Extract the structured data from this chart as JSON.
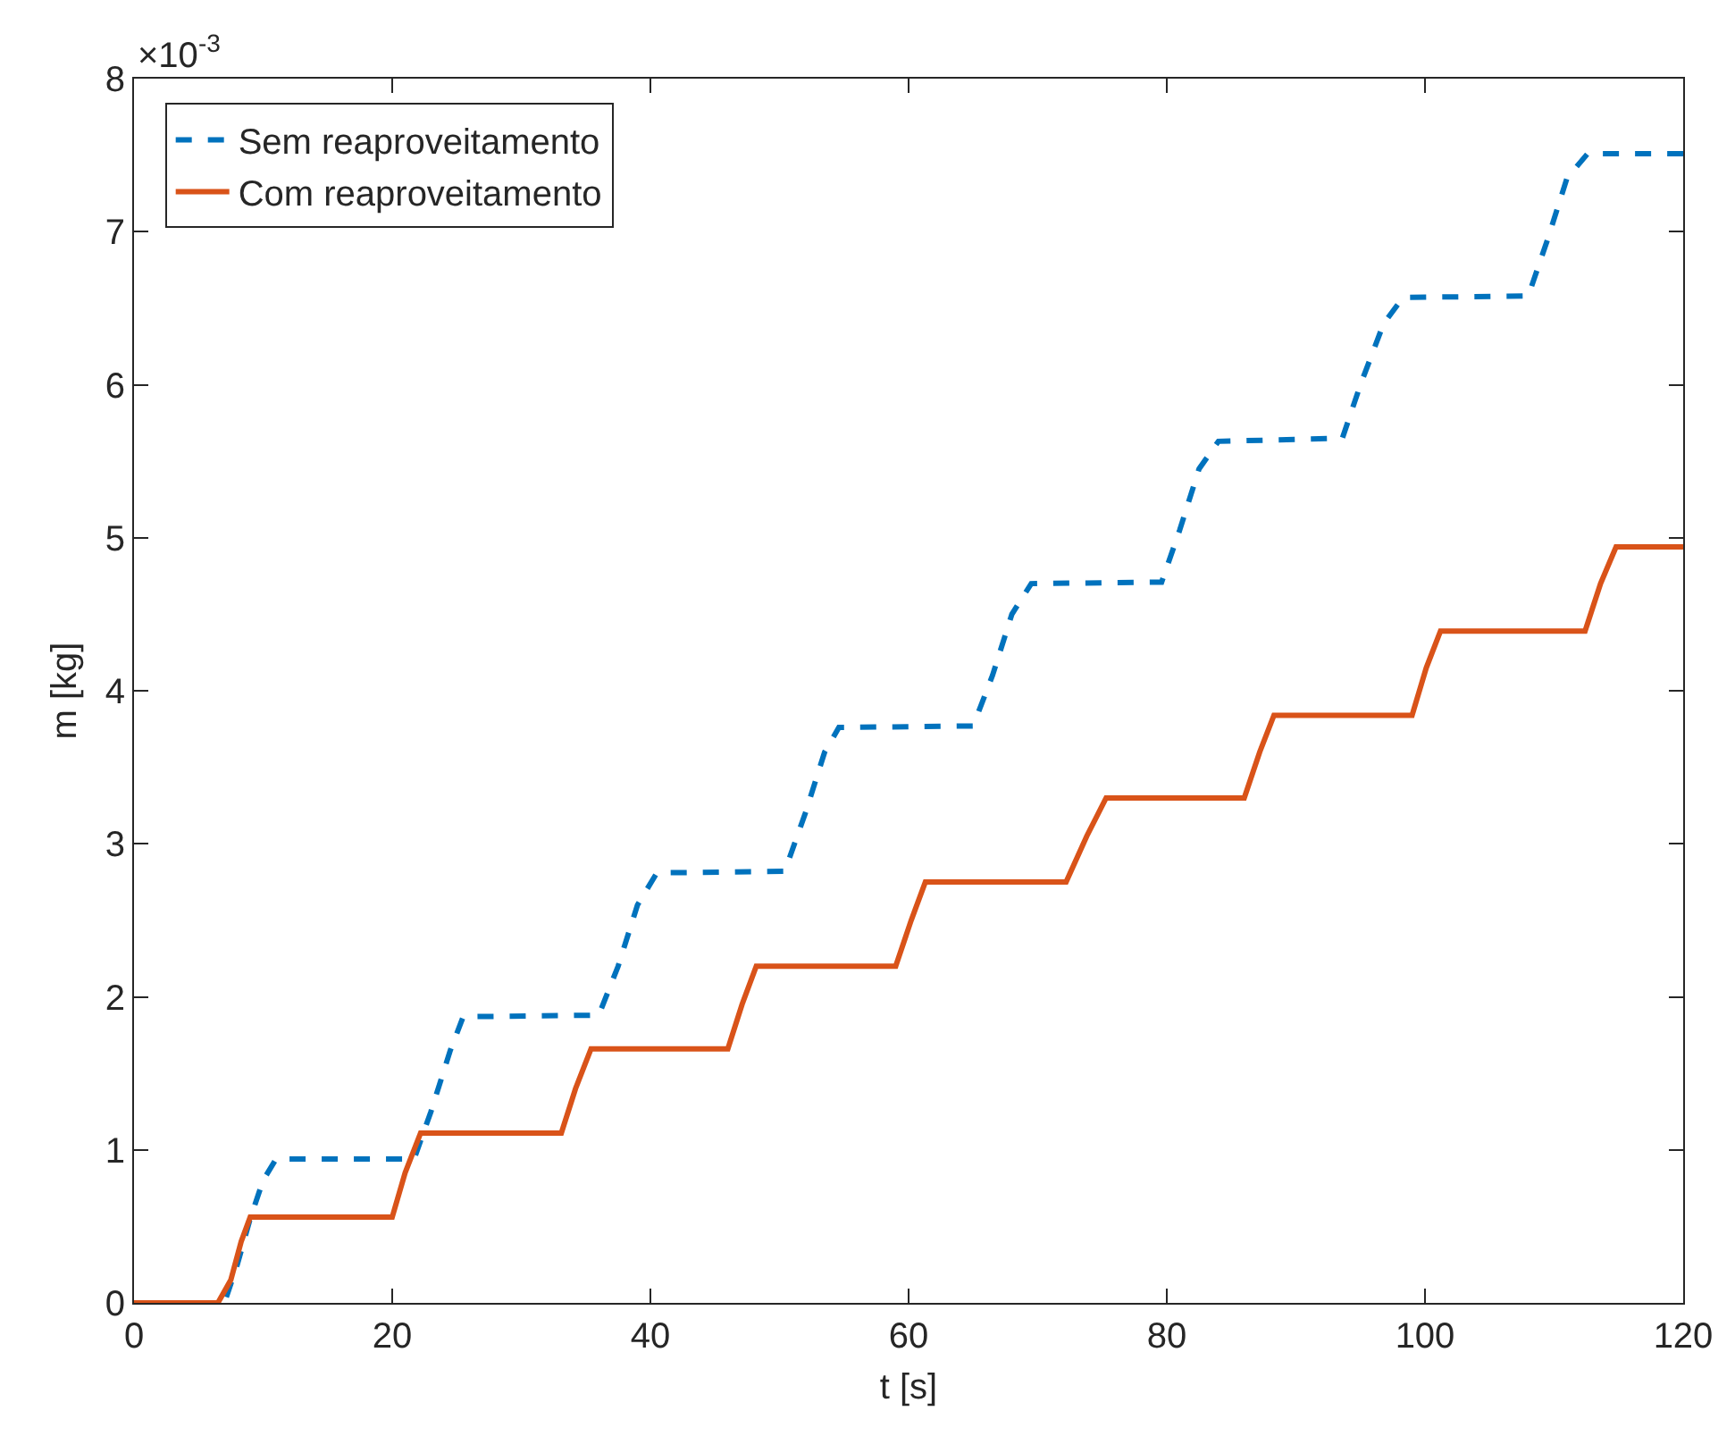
{
  "chart_data": {
    "type": "line",
    "xlabel": "t [s]",
    "ylabel": "m [kg]",
    "annotations": [
      "×10$^{-3}$"
    ],
    "xlim": [
      0,
      120
    ],
    "xticks": [
      0,
      20,
      40,
      60,
      80,
      100,
      120
    ],
    "ylim": [
      0,
      8
    ],
    "yticks": [
      0,
      1,
      2,
      3,
      4,
      5,
      6,
      7,
      8
    ],
    "grid": false,
    "legend": "top left",
    "series": [
      {
        "name": "Sem reaproveitamento",
        "color": "#0072bd",
        "line_style": "dashed",
        "x": [
          0,
          7,
          8,
          9,
          10,
          11,
          21.7,
          23,
          24.5,
          25.5,
          36,
          37.5,
          39,
          40.5,
          50.4,
          52,
          53.5,
          54.6,
          65,
          66.5,
          68,
          69.5,
          79.6,
          81,
          82.5,
          84,
          93.6,
          95,
          96.8,
          98.3,
          108,
          109.5,
          111,
          112.6,
          120
        ],
        "values": [
          0,
          0,
          0.25,
          0.55,
          0.8,
          0.94,
          0.94,
          1.25,
          1.65,
          1.87,
          1.88,
          2.2,
          2.6,
          2.81,
          2.82,
          3.2,
          3.6,
          3.76,
          3.77,
          4.1,
          4.5,
          4.7,
          4.71,
          5.05,
          5.45,
          5.63,
          5.65,
          6.0,
          6.4,
          6.57,
          6.58,
          6.95,
          7.35,
          7.51,
          7.51
        ]
      },
      {
        "name": "Com reaproveitamento",
        "color": "#d95319",
        "line_style": "solid",
        "x": [
          0,
          6.5,
          7.5,
          8.3,
          9,
          20,
          21,
          22.2,
          33.1,
          34.2,
          35.4,
          46,
          47.1,
          48.2,
          59,
          60.2,
          61.3,
          72.2,
          73.8,
          75.3,
          86,
          87.2,
          88.3,
          99,
          100.1,
          101.2,
          112.4,
          113.6,
          114.8,
          120
        ],
        "values": [
          0,
          0,
          0.15,
          0.4,
          0.56,
          0.56,
          0.85,
          1.11,
          1.11,
          1.4,
          1.66,
          1.66,
          1.95,
          2.2,
          2.2,
          2.5,
          2.75,
          2.75,
          3.05,
          3.3,
          3.3,
          3.6,
          3.84,
          3.84,
          4.15,
          4.39,
          4.39,
          4.7,
          4.94,
          4.94
        ]
      }
    ]
  }
}
